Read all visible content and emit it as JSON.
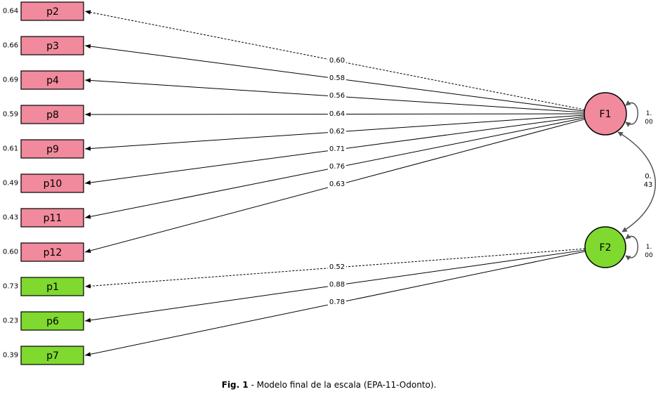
{
  "factors": [
    {
      "name": "F1",
      "variance": "1.00",
      "color": "#f08a9c"
    },
    {
      "name": "F2",
      "variance": "1.00",
      "color": "#7fd92e"
    }
  ],
  "correlation": "0.43",
  "indicators": [
    {
      "name": "p2",
      "factor": 0,
      "residual": "0.64",
      "loading": "0.60",
      "fixed": true
    },
    {
      "name": "p3",
      "factor": 0,
      "residual": "0.66",
      "loading": "0.58",
      "fixed": false
    },
    {
      "name": "p4",
      "factor": 0,
      "residual": "0.69",
      "loading": "0.56",
      "fixed": false
    },
    {
      "name": "p8",
      "factor": 0,
      "residual": "0.59",
      "loading": "0.64",
      "fixed": false
    },
    {
      "name": "p9",
      "factor": 0,
      "residual": "0.61",
      "loading": "0.62",
      "fixed": false
    },
    {
      "name": "p10",
      "factor": 0,
      "residual": "0.49",
      "loading": "0.71",
      "fixed": false
    },
    {
      "name": "p11",
      "factor": 0,
      "residual": "0.43",
      "loading": "0.76",
      "fixed": false
    },
    {
      "name": "p12",
      "factor": 0,
      "residual": "0.60",
      "loading": "0.63",
      "fixed": false
    },
    {
      "name": "p1",
      "factor": 1,
      "residual": "0.73",
      "loading": "0.52",
      "fixed": true
    },
    {
      "name": "p6",
      "factor": 1,
      "residual": "0.23",
      "loading": "0.88",
      "fixed": false
    },
    {
      "name": "p7",
      "factor": 1,
      "residual": "0.39",
      "loading": "0.78",
      "fixed": false
    }
  ],
  "caption": {
    "label": "Fig. 1",
    "text": "- Modelo final de la escala (EPA-11-Odonto)."
  }
}
